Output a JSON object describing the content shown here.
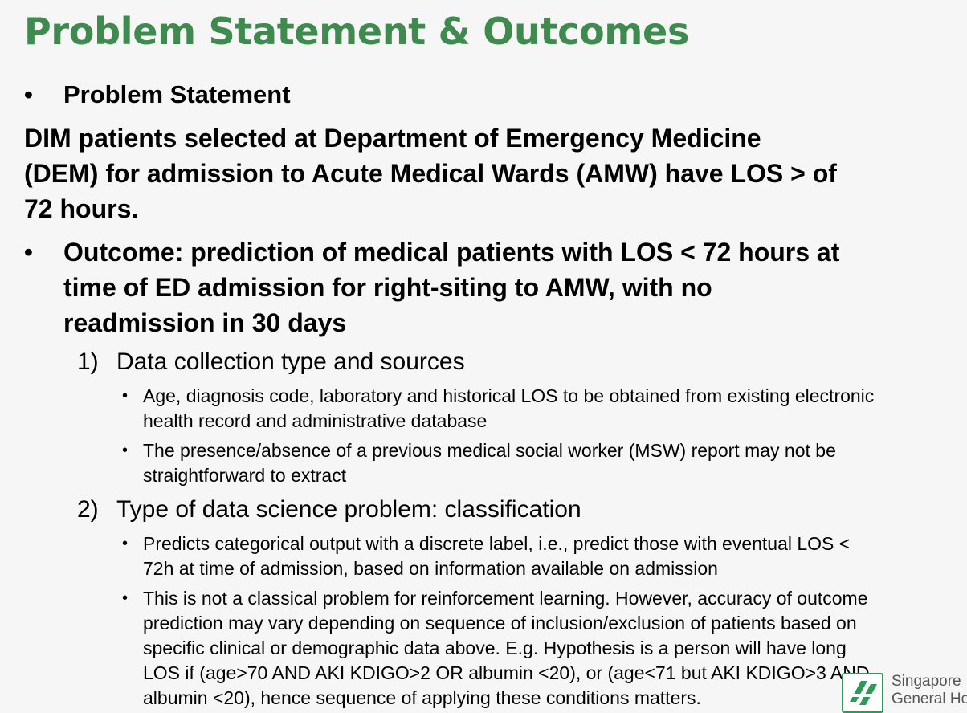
{
  "title": "Problem Statement & Outcomes",
  "bullet_symbol": "•",
  "problem_statement": {
    "heading": "Problem Statement",
    "lines": [
      "DIM patients selected at Department of Emergency Medicine",
      "(DEM) for admission to Acute Medical Wards (AMW) have LOS > of",
      "72 hours."
    ]
  },
  "outcome": {
    "lines": [
      "Outcome: prediction of medical patients with LOS < 72 hours at",
      "time of ED admission for right-siting to AMW, with no",
      "readmission in 30 days"
    ]
  },
  "sections": [
    {
      "number": "1)",
      "heading": "Data collection type and sources",
      "bullets": [
        [
          "Age, diagnosis code, laboratory and historical LOS to be obtained from existing electronic",
          "health record and administrative database"
        ],
        [
          "The presence/absence of a previous medical social worker (MSW) report may not be",
          "straightforward to extract"
        ]
      ]
    },
    {
      "number": "2)",
      "heading": "Type of data science problem: classification",
      "bullets": [
        [
          "Predicts categorical output with a discrete label, i.e., predict those with eventual LOS <",
          "72h at time of admission, based on information available on admission"
        ],
        [
          "This is not a classical problem for reinforcement learning. However, accuracy of outcome",
          "prediction may vary depending on sequence of inclusion/exclusion of patients based on",
          "specific clinical or demographic data above. E.g. Hypothesis is a person will have long",
          "LOS if (age>70 AND AKI KDIGO>2 OR albumin <20), or (age<71 but AKI KDIGO>3 AND",
          "albumin <20), hence sequence of applying these conditions matters."
        ]
      ]
    }
  ],
  "logo": {
    "name": "singapore-general-hospital-logo",
    "line1": "Singapore",
    "line2": "General Hos",
    "color": "#2f9a57"
  },
  "colors": {
    "title": "#3e8a4f",
    "background": "#f6f6f6"
  }
}
